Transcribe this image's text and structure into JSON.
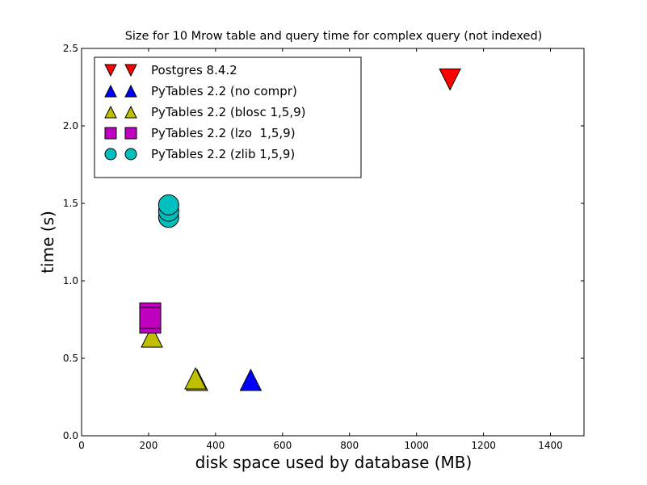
{
  "chart_data": {
    "type": "scatter",
    "title": "Size for 10 Mrow table and query time for complex query (not indexed)",
    "xlabel": "disk space used by database (MB)",
    "ylabel": "time (s)",
    "xlim": [
      0,
      1500
    ],
    "ylim": [
      0,
      2.5
    ],
    "xticks": [
      "0",
      "200",
      "400",
      "600",
      "800",
      "1000",
      "1200",
      "1400"
    ],
    "yticks": [
      "0.0",
      "0.5",
      "1.0",
      "1.5",
      "2.0",
      "2.5"
    ],
    "grid": false,
    "legend_position": "top-left",
    "series": [
      {
        "name": "Postgres 8.4.2",
        "color": "#ff0000",
        "marker": "triangle-down",
        "points": [
          [
            1100,
            2.3
          ]
        ]
      },
      {
        "name": "PyTables 2.2 (no compr)",
        "color": "#0000ff",
        "marker": "triangle-up",
        "points": [
          [
            505,
            0.36
          ]
        ]
      },
      {
        "name": "PyTables 2.2 (blosc 1,5,9)",
        "color": "#bfbf00",
        "marker": "triangle-up",
        "points": [
          [
            210,
            0.64
          ],
          [
            345,
            0.36
          ],
          [
            340,
            0.37
          ]
        ]
      },
      {
        "name": "PyTables 2.2 (lzo  1,5,9)",
        "color": "#bf00bf",
        "marker": "square",
        "points": [
          [
            205,
            0.79
          ],
          [
            205,
            0.73
          ],
          [
            205,
            0.76
          ]
        ]
      },
      {
        "name": "PyTables 2.2 (zlib 1,5,9)",
        "color": "#00bfbf",
        "marker": "circle",
        "points": [
          [
            260,
            1.41
          ],
          [
            260,
            1.45
          ],
          [
            260,
            1.49
          ]
        ]
      }
    ]
  }
}
